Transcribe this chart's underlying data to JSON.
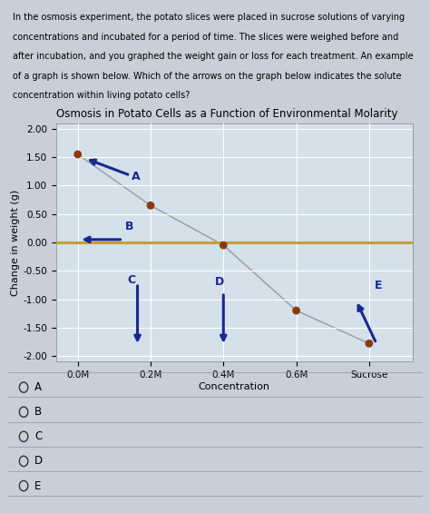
{
  "title": "Osmosis in Potato Cells as a Function of Environmental Molarity",
  "xlabel": "Concentration",
  "ylabel": "Change in weight (g)",
  "xlim": [
    -0.3,
    4.6
  ],
  "ylim": [
    -2.1,
    2.1
  ],
  "yticks": [
    -2.0,
    -1.5,
    -1.0,
    -0.5,
    0.0,
    0.5,
    1.0,
    1.5,
    2.0
  ],
  "xtick_positions": [
    0,
    1,
    2,
    3,
    4
  ],
  "xtick_labels": [
    "0.0M",
    "0.2M",
    "0.4M",
    "0.6M",
    "Sucrose"
  ],
  "page_bg_color": "#c8cfd8",
  "plot_bg_color": "#d4e0ea",
  "grid_color": "#ffffff",
  "data_line_color": "#a0a0a0",
  "data_points_x": [
    0,
    1,
    2,
    3,
    4
  ],
  "data_points_y": [
    1.55,
    0.65,
    -0.05,
    -1.2,
    -1.78
  ],
  "zero_line_color": "#c8a030",
  "zero_line_lw": 2.2,
  "arrow_color": "#1a2890",
  "dot_color": "#8B3A10",
  "dot_size": 40,
  "title_fontsize": 8.5,
  "label_fontsize": 8,
  "tick_fontsize": 7.5,
  "arrow_label_fontsize": 9,
  "paragraph": "In the osmosis experiment, the potato slices were placed in sucrose solutions of varying concentrations and incubated for a period of time. The slices were weighed before and after incubation, and you graphed the weight gain or loss for each treatment. An example of a graph is shown below. Which of the arrows on the graph below indicates the solute concentration within living potato cells?",
  "choices": [
    "A",
    "B",
    "C",
    "D",
    "E"
  ]
}
